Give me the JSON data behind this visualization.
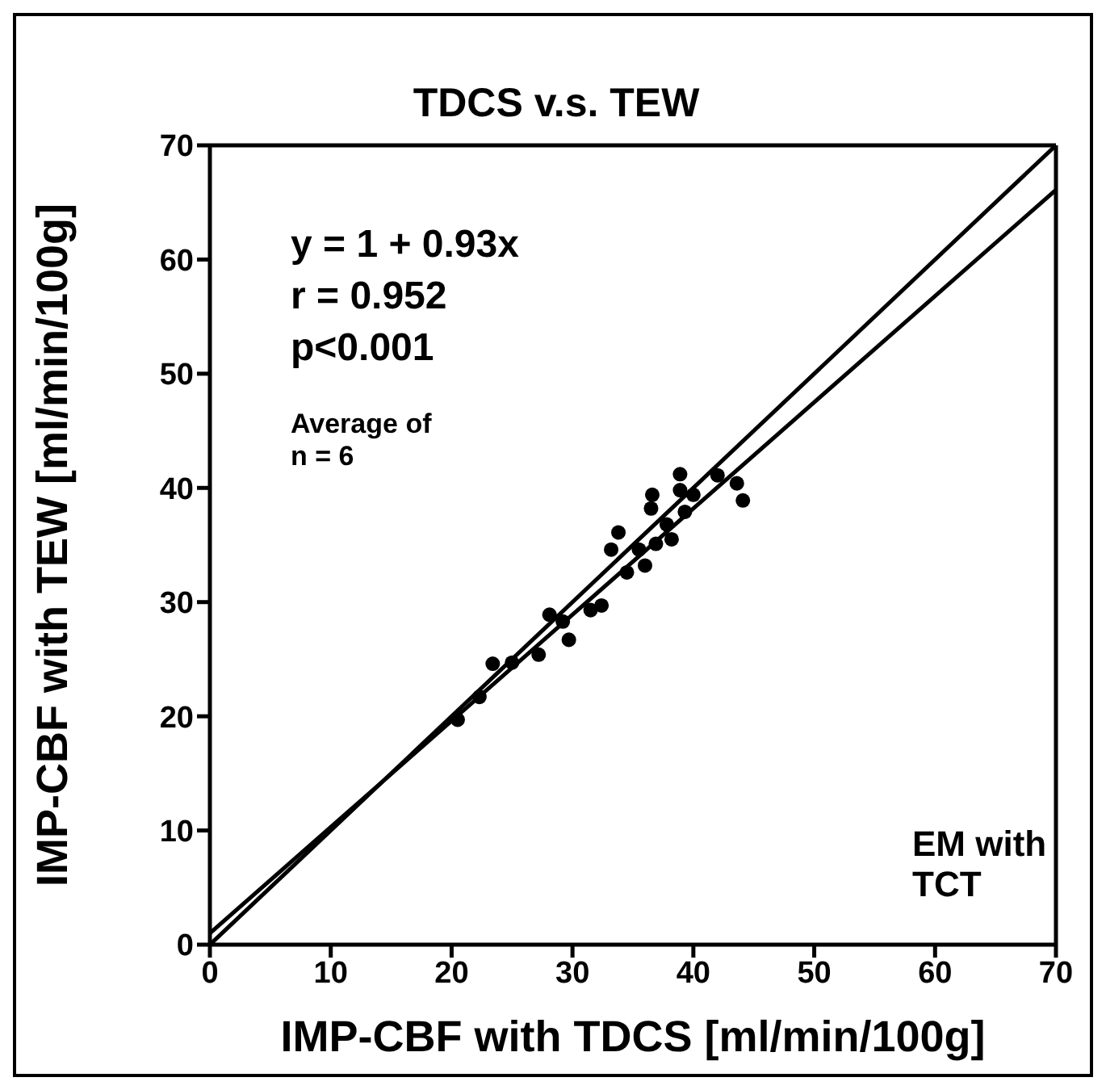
{
  "chart_data": {
    "type": "scatter",
    "title": "TDCS v.s. TEW",
    "xlabel": "IMP-CBF with TDCS [ml/min/100g]",
    "ylabel": "IMP-CBF with TEW [ml/min/100g]",
    "xlim": [
      0,
      70
    ],
    "ylim": [
      0,
      70
    ],
    "xticks": [
      0,
      10,
      20,
      30,
      40,
      50,
      60,
      70
    ],
    "yticks": [
      0,
      10,
      20,
      30,
      40,
      50,
      60,
      70
    ],
    "grid": false,
    "legend": false,
    "annotations": [
      "y = 1 + 0.93x",
      "r = 0.952",
      "p<0.001",
      "Average of n = 6",
      "EM with TCT"
    ],
    "series": [
      {
        "color": "#000000",
        "marker": "circle",
        "x": [
          20.5,
          22.3,
          23.4,
          25,
          27.2,
          28.1,
          29.2,
          29.7,
          31.5,
          32.4,
          33.8,
          33.2,
          34.5,
          36,
          35.5,
          36.9,
          38.2,
          36.5,
          36.6,
          37.8,
          38.9,
          38.9,
          39.3,
          40,
          42,
          43.6,
          44.1
        ],
        "values": [
          19.7,
          21.7,
          24.6,
          24.7,
          25.4,
          28.9,
          28.3,
          26.7,
          29.3,
          29.7,
          36.1,
          34.6,
          32.6,
          33.2,
          34.6,
          35.1,
          35.5,
          38.2,
          39.4,
          36.8,
          41.2,
          39.8,
          37.9,
          39.4,
          41.1,
          40.4,
          38.9
        ]
      },
      {
        "type": "line",
        "color": "#000000",
        "marker": "none",
        "line_style": "solid",
        "x": [
          0,
          70
        ],
        "values": [
          1,
          66.1
        ]
      },
      {
        "type": "line",
        "color": "#000000",
        "marker": "none",
        "line_style": "solid",
        "x": [
          0,
          70
        ],
        "values": [
          0,
          70
        ]
      }
    ]
  }
}
